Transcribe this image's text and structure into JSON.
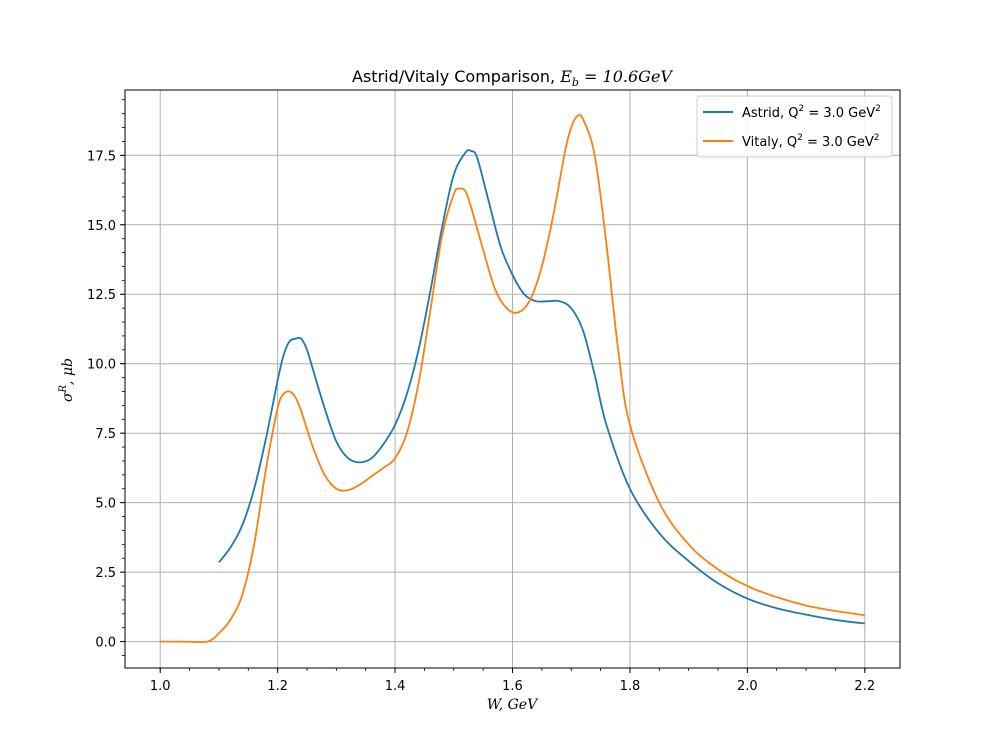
{
  "chart_data": {
    "type": "line",
    "title": "Astrid/Vitaly Comparison, E_b = 10.6GeV",
    "title_parts": {
      "prefix": "Astrid/Vitaly Comparison, ",
      "e": "E",
      "sub": "b",
      "rest": " = 10.6GeV"
    },
    "xlabel": "W, GeV",
    "ylabel": "σ^R, μb",
    "ylabel_parts": {
      "sigma": "σ",
      "sup": "R",
      "rest": ", μb"
    },
    "xlim": [
      0.94,
      2.26
    ],
    "ylim": [
      -0.95,
      19.85
    ],
    "xticks": [
      1.0,
      1.2,
      1.4,
      1.6,
      1.8,
      2.0,
      2.2
    ],
    "xtick_labels": [
      "1.0",
      "1.2",
      "1.4",
      "1.6",
      "1.8",
      "2.0",
      "2.2"
    ],
    "yticks": [
      0.0,
      2.5,
      5.0,
      7.5,
      10.0,
      12.5,
      15.0,
      17.5
    ],
    "ytick_labels": [
      "0.0",
      "2.5",
      "5.0",
      "7.5",
      "10.0",
      "12.5",
      "15.0",
      "17.5"
    ],
    "grid": true,
    "legend_position": "top-right",
    "series": [
      {
        "name": "Astrid, Q^2 = 3.0 GeV^2",
        "legend_parts": {
          "prefix": "Astrid, Q",
          "sup": "2",
          "mid": " = 3.0 GeV",
          "sup2": "2"
        },
        "color": "#1f77b4",
        "x": [
          1.1,
          1.12,
          1.14,
          1.16,
          1.18,
          1.2,
          1.21,
          1.22,
          1.23,
          1.24,
          1.25,
          1.26,
          1.28,
          1.3,
          1.32,
          1.34,
          1.36,
          1.38,
          1.4,
          1.42,
          1.44,
          1.46,
          1.48,
          1.5,
          1.52,
          1.53,
          1.54,
          1.56,
          1.58,
          1.6,
          1.62,
          1.64,
          1.66,
          1.68,
          1.7,
          1.72,
          1.74,
          1.76,
          1.8,
          1.85,
          1.9,
          1.95,
          2.0,
          2.05,
          2.1,
          2.15,
          2.2
        ],
        "y": [
          2.85,
          3.4,
          4.2,
          5.5,
          7.3,
          9.4,
          10.3,
          10.8,
          10.9,
          10.9,
          10.5,
          9.8,
          8.4,
          7.2,
          6.6,
          6.45,
          6.6,
          7.1,
          7.8,
          8.9,
          10.5,
          12.6,
          14.9,
          16.8,
          17.6,
          17.65,
          17.4,
          15.8,
          14.2,
          13.2,
          12.5,
          12.25,
          12.25,
          12.25,
          12.0,
          11.2,
          9.6,
          7.8,
          5.5,
          3.9,
          2.9,
          2.1,
          1.55,
          1.2,
          0.97,
          0.78,
          0.65
        ]
      },
      {
        "name": "Vitaly, Q^2 = 3.0 GeV^2",
        "legend_parts": {
          "prefix": "Vitaly, Q",
          "sup": "2",
          "mid": " = 3.0 GeV",
          "sup2": "2"
        },
        "color": "#ff7f0e",
        "x": [
          1.0,
          1.04,
          1.08,
          1.1,
          1.12,
          1.14,
          1.16,
          1.18,
          1.2,
          1.21,
          1.22,
          1.23,
          1.24,
          1.26,
          1.28,
          1.3,
          1.32,
          1.34,
          1.36,
          1.38,
          1.4,
          1.42,
          1.44,
          1.46,
          1.48,
          1.5,
          1.51,
          1.52,
          1.53,
          1.55,
          1.57,
          1.59,
          1.61,
          1.63,
          1.65,
          1.67,
          1.69,
          1.7,
          1.71,
          1.72,
          1.74,
          1.76,
          1.78,
          1.8,
          1.85,
          1.9,
          1.95,
          2.0,
          2.05,
          2.1,
          2.15,
          2.2
        ],
        "y": [
          0.0,
          0.0,
          0.0,
          0.3,
          0.8,
          1.7,
          3.5,
          6.2,
          8.4,
          8.9,
          9.0,
          8.8,
          8.3,
          7.0,
          6.0,
          5.5,
          5.45,
          5.65,
          5.95,
          6.25,
          6.6,
          7.5,
          9.3,
          11.9,
          14.6,
          16.1,
          16.3,
          16.2,
          15.6,
          14.1,
          12.7,
          12.0,
          11.85,
          12.3,
          13.5,
          15.4,
          17.7,
          18.5,
          18.9,
          18.8,
          17.5,
          14.3,
          10.5,
          7.8,
          5.0,
          3.5,
          2.6,
          2.0,
          1.6,
          1.3,
          1.1,
          0.95
        ]
      }
    ]
  }
}
